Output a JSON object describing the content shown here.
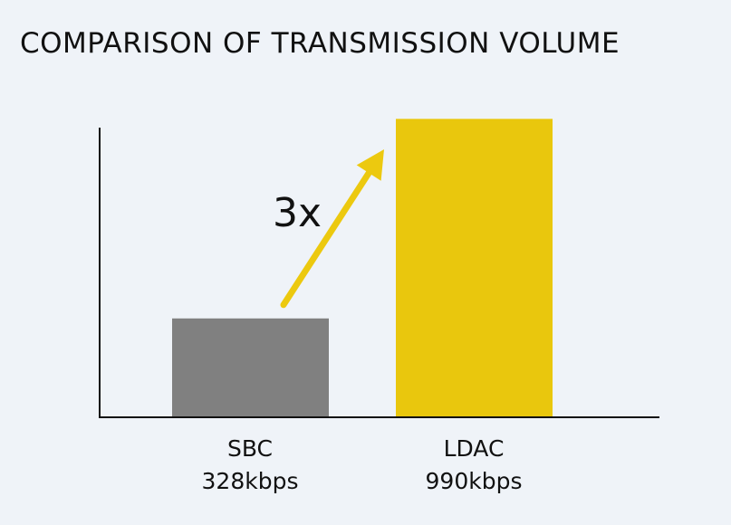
{
  "chart_data": {
    "type": "bar",
    "title": "COMPARISON OF TRANSMISSION VOLUME",
    "categories": [
      "SBC",
      "LDAC"
    ],
    "category_values": [
      "328kbps",
      "990kbps"
    ],
    "values": [
      328,
      990
    ],
    "unit": "kbps",
    "ylim": [
      0,
      1000
    ],
    "annotation": "3x",
    "grid": false,
    "colors": [
      "#808080",
      "#e9c70d"
    ],
    "arrow_color": "#ecc90f",
    "axis_color": "#111111"
  }
}
